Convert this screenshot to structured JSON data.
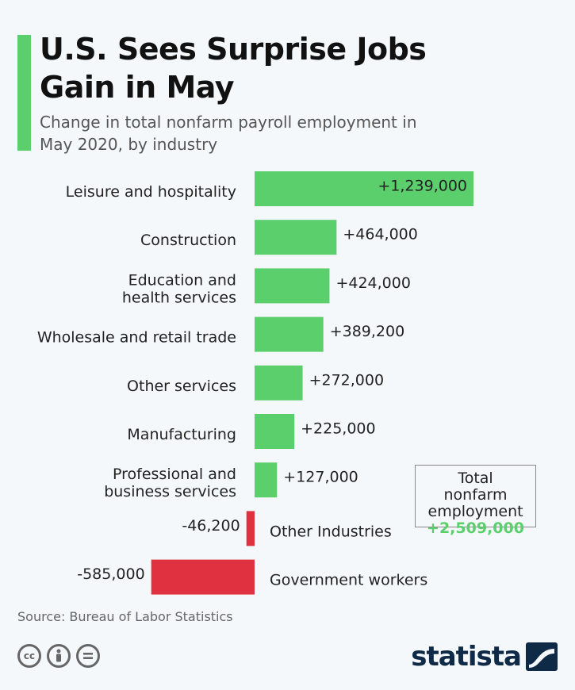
{
  "header": {
    "title": "U.S. Sees Surprise Jobs Gain in May",
    "subtitle": "Change in total nonfarm payroll employment in May 2020, by industry"
  },
  "colors": {
    "accent": "#5ccf6d",
    "positive": "#5ccf6d",
    "negative": "#e03140",
    "total_value": "#5ccf6d"
  },
  "chart_data": {
    "type": "bar",
    "orientation": "horizontal",
    "categories": [
      "Leisure and hospitality",
      "Construction",
      "Education and health services",
      "Wholesale and retail trade",
      "Other services",
      "Manufacturing",
      "Professional and business services",
      "Other Industries",
      "Government workers"
    ],
    "category_lines": [
      [
        "Leisure and hospitality"
      ],
      [
        "Construction"
      ],
      [
        "Education and",
        "health services"
      ],
      [
        "Wholesale and retail trade"
      ],
      [
        "Other services"
      ],
      [
        "Manufacturing"
      ],
      [
        "Professional and",
        "business services"
      ],
      [
        "Other Industries"
      ],
      [
        "Government workers"
      ]
    ],
    "values": [
      1239000,
      464000,
      424000,
      389200,
      272000,
      225000,
      127000,
      -46200,
      -585000
    ],
    "value_labels": [
      "+1,239,000",
      "+464,000",
      "+424,000",
      "+389,200",
      "+272,000",
      "+225,000",
      "+127,000",
      "-46,200",
      "-585,000"
    ],
    "xlim": [
      -585000,
      1239000
    ],
    "grid": false,
    "legend": "none"
  },
  "total_box": {
    "label": "Total nonfarm employment",
    "value": "+2,509,000"
  },
  "footer": {
    "source": "Source: Bureau of Labor Statistics",
    "license_icons": [
      "cc-icon",
      "attribution-icon",
      "no-derivatives-icon"
    ],
    "brand": "statista"
  }
}
